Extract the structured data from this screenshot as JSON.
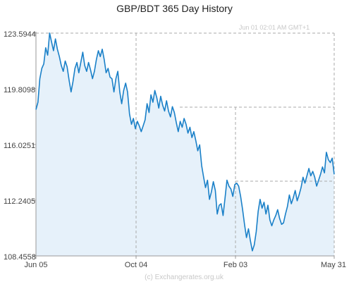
{
  "chart_data": {
    "type": "area",
    "title": "GBP/BDT  365 Day History",
    "timestamp": "Jun 01  02:01 AM GMT+1",
    "credit": "(c) Exchangerates.org.uk",
    "xlabel": "",
    "ylabel": "",
    "x_ticks": [
      "Jun 05",
      "Oct 04",
      "Feb 03",
      "May 31"
    ],
    "y_ticks": [
      "123.5944",
      "119.8098",
      "116.0251",
      "112.2405",
      "108.4558"
    ],
    "ylim": [
      108.4558,
      123.5944
    ],
    "grid": true,
    "legend": "none",
    "colors": {
      "line": "#1a80c8",
      "fill": "#e6f1fa",
      "grid": "#aaaaaa"
    },
    "series": [
      {
        "values": [
          118.4,
          118.9,
          120.5,
          121.2,
          121.5,
          122.6,
          122.1,
          123.6,
          123.0,
          122.4,
          123.2,
          122.5,
          122.0,
          121.4,
          121.0,
          121.7,
          121.3,
          120.4,
          119.6,
          120.3,
          121.2,
          121.6,
          120.9,
          121.6,
          122.3,
          121.4,
          121.0,
          121.6,
          121.1,
          120.5,
          121.0,
          121.8,
          122.4,
          122.0,
          122.5,
          121.8,
          120.9,
          121.2,
          120.6,
          120.5,
          119.6,
          120.5,
          121.0,
          119.6,
          118.8,
          119.7,
          120.2,
          119.6,
          118.1,
          117.4,
          117.8,
          117.1,
          117.6,
          117.3,
          116.9,
          117.3,
          117.7,
          118.8,
          118.2,
          119.4,
          118.9,
          119.7,
          119.2,
          118.5,
          119.3,
          118.7,
          118.3,
          119.0,
          118.3,
          117.9,
          118.6,
          118.2,
          117.5,
          116.9,
          117.6,
          117.2,
          117.8,
          117.4,
          116.8,
          117.2,
          116.5,
          116.9,
          116.3,
          115.6,
          116.0,
          114.6,
          113.8,
          113.1,
          113.6,
          112.3,
          112.8,
          113.5,
          112.9,
          111.3,
          111.9,
          112.0,
          111.2,
          112.4,
          113.6,
          113.2,
          113.0,
          112.5,
          113.3,
          113.4,
          113.2,
          112.5,
          111.6,
          110.6,
          109.7,
          110.3,
          109.5,
          108.8,
          109.2,
          110.1,
          111.5,
          112.3,
          111.7,
          112.1,
          111.3,
          111.9,
          110.9,
          110.5,
          110.9,
          111.2,
          111.6,
          111.0,
          110.6,
          110.7,
          111.3,
          111.8,
          112.6,
          112.0,
          112.4,
          112.9,
          112.2,
          112.6,
          113.1,
          113.8,
          113.4,
          113.9,
          114.4,
          113.9,
          114.2,
          113.8,
          113.2,
          113.6,
          114.0,
          114.5,
          114.1,
          115.5,
          115.0,
          114.8,
          115.1,
          114.0
        ]
      }
    ]
  }
}
